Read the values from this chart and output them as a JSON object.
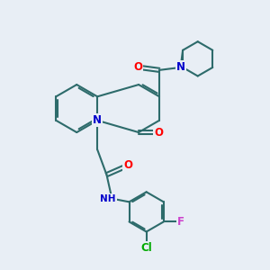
{
  "bg_color": "#e8eef5",
  "bond_color": "#2d6b6b",
  "atom_colors": {
    "O": "#ff0000",
    "N": "#0000cc",
    "Cl": "#00aa00",
    "F": "#cc44cc",
    "H": "#555555"
  },
  "line_width": 1.5,
  "font_size": 8.5
}
